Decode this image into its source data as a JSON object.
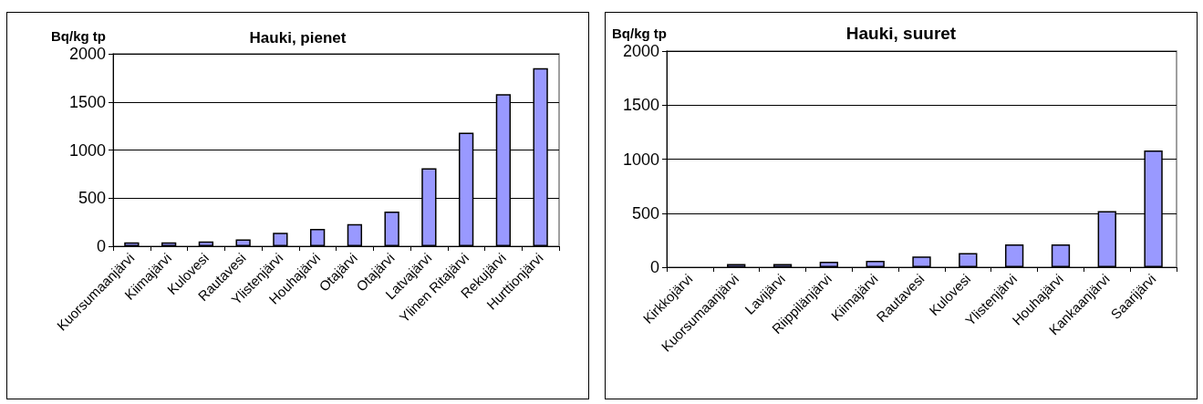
{
  "chart_data": [
    {
      "type": "bar",
      "title": "Hauki, pienet",
      "ylabel": "Bq/kg tp",
      "categories": [
        "Kuorsumaanjärvi",
        "Kiimajärvi",
        "Kulovesi",
        "Rautavesi",
        "Ylistenjärvi",
        "Houhajärvi",
        "Otajärvi",
        "Otajärvi",
        "Latvajärvi",
        "Ylinen Ritajärvi",
        "Rekujärvi",
        "Hurttionjärvi"
      ],
      "values": [
        40,
        40,
        50,
        70,
        140,
        180,
        230,
        360,
        810,
        1180,
        1580,
        1850
      ],
      "color": "#9999ff",
      "ylim": [
        0,
        2000
      ],
      "yticks": [
        0,
        500,
        1000,
        1500,
        2000
      ],
      "grid": "y"
    },
    {
      "type": "bar",
      "title": "Hauki, suuret",
      "ylabel": "Bq/kg tp",
      "categories": [
        "Kirkkojärvi",
        "Kuorsumaanjärvi",
        "Lavijärvi",
        "Riippilänjärvi",
        "Kiimajärvi",
        "Rautavesi",
        "Kulovesi",
        "Ylistenjärvi",
        "Houhajärvi",
        "Kankaanjärvi",
        "Saarijärvi"
      ],
      "values": [
        null,
        30,
        30,
        50,
        60,
        100,
        130,
        210,
        210,
        520,
        1080
      ],
      "color": "#9999ff",
      "ylim": [
        0,
        2000
      ],
      "yticks": [
        0,
        500,
        1000,
        1500,
        2000
      ],
      "grid": "y"
    }
  ]
}
